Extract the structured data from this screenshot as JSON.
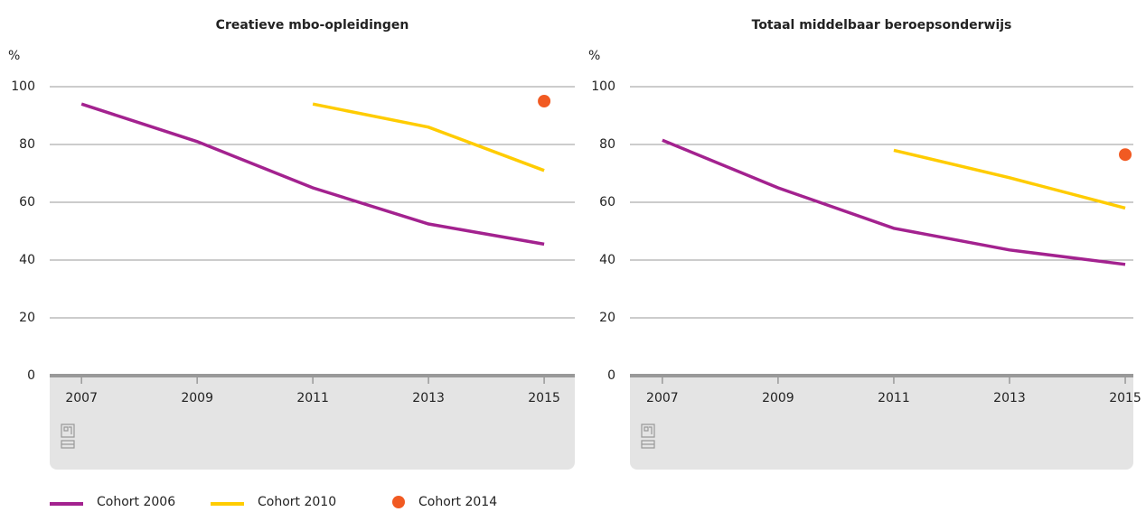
{
  "legend": [
    {
      "name": "Cohort 2006",
      "color": "#a3228f",
      "marker": "line"
    },
    {
      "name": "Cohort 2010",
      "color": "#ffcc00",
      "marker": "line"
    },
    {
      "name": "Cohort 2014",
      "color": "#f15a22",
      "marker": "dot"
    }
  ],
  "chart_data": [
    {
      "type": "line",
      "title": "Creatieve mbo-opleidingen",
      "ylabel": "%",
      "x": [
        2007,
        2009,
        2011,
        2013,
        2015
      ],
      "xlim": [
        2006.45,
        2015.53
      ],
      "xticks": [
        2007,
        2009,
        2011,
        2013,
        2015
      ],
      "ylim": [
        0,
        100
      ],
      "yticks": [
        0,
        20,
        40,
        60,
        80,
        100
      ],
      "grid": true,
      "series": [
        {
          "values": [
            94,
            81,
            65,
            52.5,
            45.5
          ]
        },
        {
          "values": [
            null,
            null,
            94,
            86,
            71
          ]
        },
        {
          "values": [
            null,
            null,
            null,
            null,
            95
          ]
        }
      ]
    },
    {
      "type": "line",
      "title": "Totaal middelbaar beroepsonderwijs",
      "ylabel": "%",
      "x": [
        2007,
        2009,
        2011,
        2013,
        2015
      ],
      "xlim": [
        2006.44,
        2015.14
      ],
      "xticks": [
        2007,
        2009,
        2011,
        2013,
        2015
      ],
      "ylim": [
        0,
        100
      ],
      "yticks": [
        0,
        20,
        40,
        60,
        80,
        100
      ],
      "grid": true,
      "series": [
        {
          "values": [
            81.5,
            65,
            51,
            43.5,
            38.5
          ]
        },
        {
          "values": [
            null,
            null,
            78,
            68.5,
            58
          ]
        },
        {
          "values": [
            null,
            null,
            null,
            null,
            76.5
          ]
        }
      ]
    }
  ]
}
